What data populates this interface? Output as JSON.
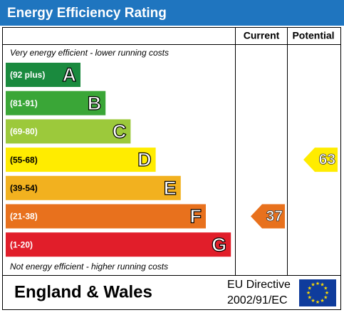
{
  "title": "Energy Efficiency Rating",
  "columns": {
    "current": "Current",
    "potential": "Potential"
  },
  "top_note": "Very energy efficient - lower running costs",
  "bottom_note": "Not energy efficient - higher running costs",
  "bands": [
    {
      "range": "(92 plus)",
      "letter": "A",
      "color": "#1a8a3e"
    },
    {
      "range": "(81-91)",
      "letter": "B",
      "color": "#3aa637"
    },
    {
      "range": "(69-80)",
      "letter": "C",
      "color": "#9cc93b"
    },
    {
      "range": "(55-68)",
      "letter": "D",
      "color": "#ffec00"
    },
    {
      "range": "(39-54)",
      "letter": "E",
      "color": "#f2b11f"
    },
    {
      "range": "(21-38)",
      "letter": "F",
      "color": "#e8711d"
    },
    {
      "range": "(1-20)",
      "letter": "G",
      "color": "#e11e2a"
    }
  ],
  "current": 37,
  "potential": 63,
  "footer": {
    "region": "England & Wales",
    "directive": [
      "EU Directive",
      "2002/91/EC"
    ]
  }
}
